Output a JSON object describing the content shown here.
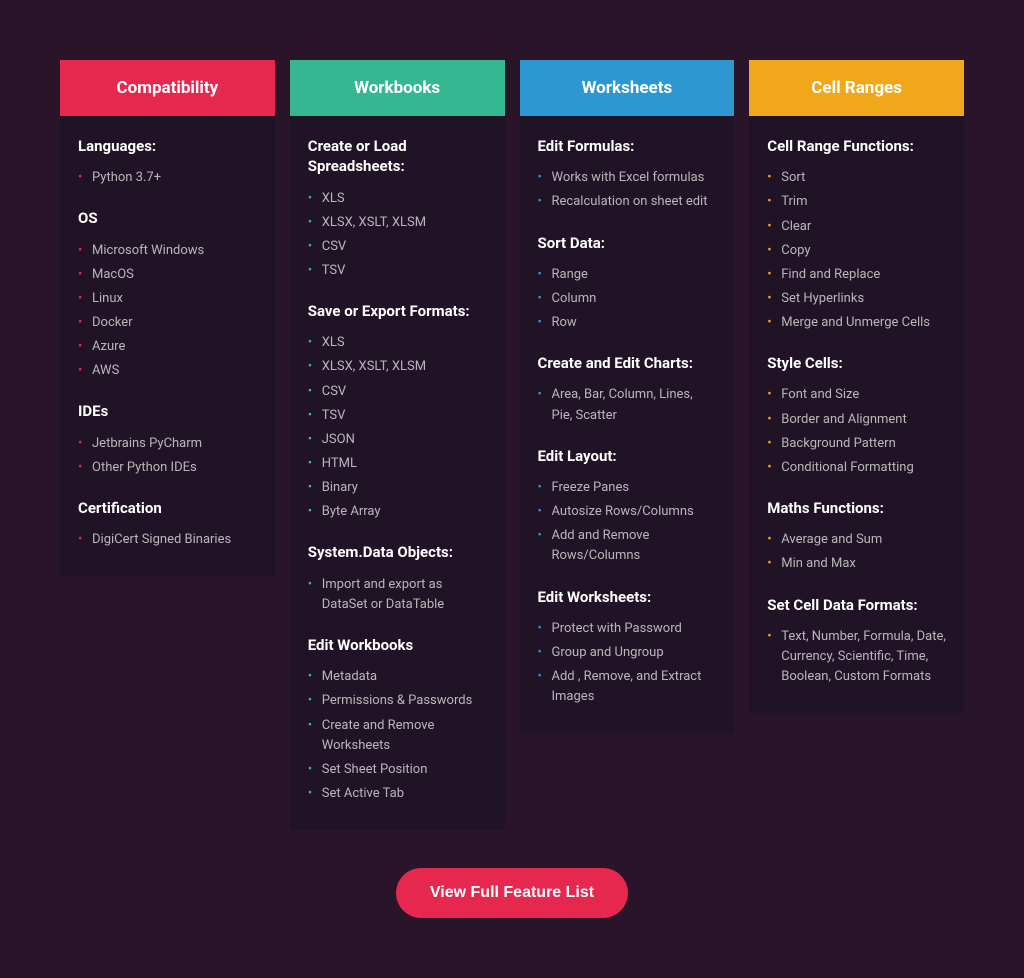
{
  "colors": {
    "page_bg": "#2a1429",
    "card_bg": "#201325",
    "text_muted": "#b9b7bb",
    "cta_bg": "#e6274e"
  },
  "columns": [
    {
      "id": "compatibility",
      "title": "Compatibility",
      "header_bg": "#e6274e",
      "bullet_class": "bullet-pink",
      "sections": [
        {
          "title": "Languages:",
          "items": [
            "Python 3.7+"
          ]
        },
        {
          "title": "OS",
          "items": [
            "Microsoft Windows",
            "MacOS",
            "Linux",
            "Docker",
            "Azure",
            "AWS"
          ]
        },
        {
          "title": "IDEs",
          "items": [
            "Jetbrains PyCharm",
            "Other Python IDEs"
          ]
        },
        {
          "title": "Certification",
          "items": [
            "DigiCert Signed Binaries"
          ]
        }
      ]
    },
    {
      "id": "workbooks",
      "title": "Workbooks",
      "header_bg": "#35b792",
      "bullet_class": "bullet-teal",
      "sections": [
        {
          "title": "Create or Load Spreadsheets:",
          "items": [
            "XLS",
            "XLSX, XSLT, XLSM",
            "CSV",
            "TSV"
          ]
        },
        {
          "title": "Save or Export Formats:",
          "items": [
            "XLS",
            "XLSX, XSLT, XLSM",
            "CSV",
            "TSV",
            "JSON",
            "HTML",
            "Binary",
            "Byte Array"
          ]
        },
        {
          "title": "System.Data Objects:",
          "items": [
            "Import and export as DataSet or DataTable"
          ]
        },
        {
          "title": "Edit Workbooks",
          "items": [
            "Metadata",
            "Permissions & Passwords",
            "Create and Remove Worksheets",
            "Set Sheet Position",
            "Set Active Tab"
          ]
        }
      ]
    },
    {
      "id": "worksheets",
      "title": "Worksheets",
      "header_bg": "#2c97d0",
      "bullet_class": "bullet-blue",
      "sections": [
        {
          "title": "Edit Formulas:",
          "items": [
            "Works with Excel formulas",
            "Recalculation on sheet edit"
          ]
        },
        {
          "title": "Sort Data:",
          "items": [
            "Range",
            "Column",
            "Row"
          ]
        },
        {
          "title": "Create and Edit Charts:",
          "items": [
            "Area, Bar, Column, Lines, Pie, Scatter"
          ]
        },
        {
          "title": "Edit Layout:",
          "items": [
            "Freeze Panes",
            "Autosize Rows/Columns",
            "Add and Remove Rows/Columns"
          ]
        },
        {
          "title": "Edit Worksheets:",
          "items": [
            "Protect with Password",
            "Group and Ungroup",
            "Add , Remove, and Extract Images"
          ]
        }
      ]
    },
    {
      "id": "cellranges",
      "title": "Cell Ranges",
      "header_bg": "#f0a71a",
      "bullet_class": "bullet-orange",
      "sections": [
        {
          "title": "Cell Range Functions:",
          "items": [
            "Sort",
            "Trim",
            "Clear",
            "Copy",
            "Find and Replace",
            "Set Hyperlinks",
            "Merge and Unmerge Cells"
          ]
        },
        {
          "title": "Style Cells:",
          "items": [
            "Font and Size",
            "Border and Alignment",
            "Background Pattern",
            "Conditional Formatting"
          ]
        },
        {
          "title": "Maths Functions:",
          "items": [
            "Average and Sum",
            "Min and Max"
          ]
        },
        {
          "title": "Set Cell Data Formats:",
          "items": [
            "Text, Number, Formula, Date, Currency, Scientific, Time, Boolean, Custom Formats"
          ]
        }
      ]
    }
  ],
  "cta_label": "View Full Feature List"
}
